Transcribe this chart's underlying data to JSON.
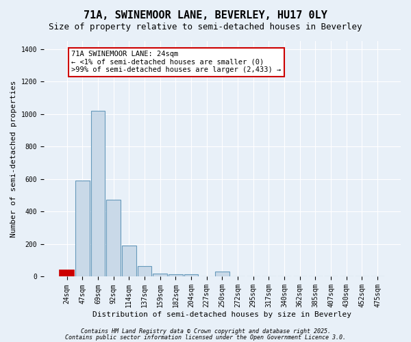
{
  "title_line1": "71A, SWINEMOOR LANE, BEVERLEY, HU17 0LY",
  "title_line2": "Size of property relative to semi-detached houses in Beverley",
  "xlabel": "Distribution of semi-detached houses by size in Beverley",
  "ylabel": "Number of semi-detached properties",
  "bin_labels": [
    "24sqm",
    "47sqm",
    "69sqm",
    "92sqm",
    "114sqm",
    "137sqm",
    "159sqm",
    "182sqm",
    "204sqm",
    "227sqm",
    "250sqm",
    "272sqm",
    "295sqm",
    "317sqm",
    "340sqm",
    "362sqm",
    "385sqm",
    "407sqm",
    "430sqm",
    "452sqm",
    "475sqm"
  ],
  "bar_heights": [
    40,
    590,
    1020,
    475,
    190,
    65,
    20,
    15,
    15,
    0,
    30,
    0,
    0,
    0,
    0,
    0,
    0,
    0,
    0,
    0,
    0
  ],
  "bar_color": "#c9d9e8",
  "bar_edge_color": "#6699bb",
  "highlight_bar_index": 0,
  "highlight_color": "#cc0000",
  "highlight_edge_color": "#cc0000",
  "annotation_text": "71A SWINEMOOR LANE: 24sqm\n← <1% of semi-detached houses are smaller (0)\n>99% of semi-detached houses are larger (2,433) →",
  "annotation_box_color": "#ffffff",
  "annotation_box_edge_color": "#cc0000",
  "ylim": [
    0,
    1450
  ],
  "yticks": [
    0,
    200,
    400,
    600,
    800,
    1000,
    1200,
    1400
  ],
  "bg_color": "#e8f0f8",
  "plot_bg_color": "#e8f0f8",
  "grid_color": "#ffffff",
  "footer_line1": "Contains HM Land Registry data © Crown copyright and database right 2025.",
  "footer_line2": "Contains public sector information licensed under the Open Government Licence 3.0.",
  "title_fontsize": 11,
  "subtitle_fontsize": 9,
  "axis_label_fontsize": 8,
  "tick_fontsize": 7,
  "annotation_fontsize": 7.5,
  "footer_fontsize": 6
}
